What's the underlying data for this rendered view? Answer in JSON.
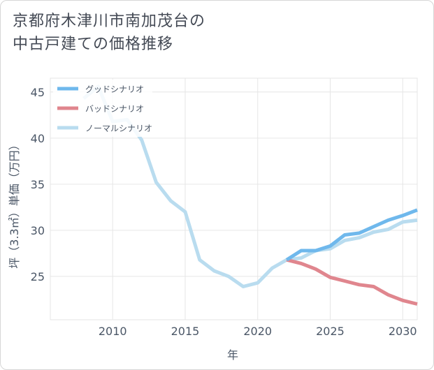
{
  "title_lines": [
    "京都府木津川市南加茂台の",
    "中古戸建ての価格推移"
  ],
  "chart_data": {
    "type": "line",
    "title": "京都府木津川市南加茂台の中古戸建ての価格推移",
    "xlabel": "年",
    "ylabel": "坪（3.3㎡）単価（万円）",
    "xlim": [
      2005.7,
      2031
    ],
    "ylim": [
      20.3,
      46.5
    ],
    "xticks": [
      2010,
      2015,
      2020,
      2025,
      2030
    ],
    "yticks": [
      25,
      30,
      35,
      40,
      45
    ],
    "grid": true,
    "legend_position": "top-left",
    "series": [
      {
        "name": "グッドシナリオ",
        "color": "#6fb8ec",
        "x": [
          2022,
          2023,
          2024,
          2025,
          2026,
          2027,
          2028,
          2029,
          2030,
          2031
        ],
        "y": [
          26.8,
          27.8,
          27.8,
          28.3,
          29.5,
          29.7,
          30.4,
          31.1,
          31.6,
          32.2
        ]
      },
      {
        "name": "バッドシナリオ",
        "color": "#e0868e",
        "x": [
          2022,
          2023,
          2024,
          2025,
          2026,
          2027,
          2028,
          2029,
          2030,
          2031
        ],
        "y": [
          26.8,
          26.4,
          25.8,
          24.9,
          24.5,
          24.1,
          23.9,
          23.0,
          22.4,
          22.0
        ]
      },
      {
        "name": "ノーマルシナリオ",
        "color": "#b9dcef",
        "x": [
          2008,
          2009,
          2010,
          2011,
          2012,
          2013,
          2014,
          2015,
          2016,
          2017,
          2018,
          2019,
          2020,
          2021,
          2022,
          2023,
          2024,
          2025,
          2026,
          2027,
          2028,
          2029,
          2030,
          2031
        ],
        "y": [
          44.3,
          45.6,
          41.8,
          42.0,
          39.8,
          35.2,
          33.2,
          32.0,
          26.8,
          25.6,
          25.0,
          23.9,
          24.3,
          25.9,
          26.8,
          27.0,
          27.8,
          28.0,
          28.9,
          29.2,
          29.8,
          30.1,
          30.9,
          31.1
        ]
      }
    ]
  }
}
